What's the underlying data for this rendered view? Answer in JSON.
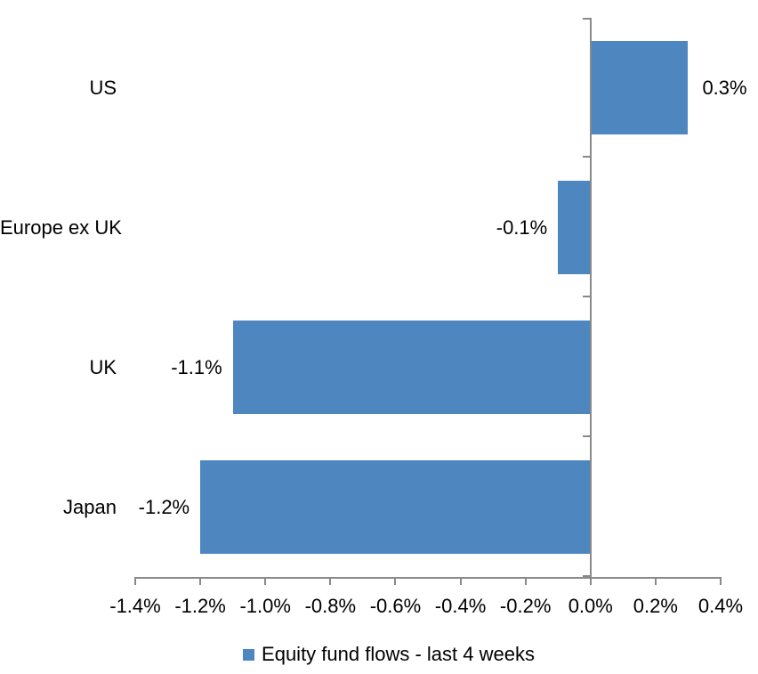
{
  "chart_data": {
    "type": "bar",
    "orientation": "horizontal",
    "title": "",
    "categories": [
      "US",
      "Europe ex UK",
      "UK",
      "Japan"
    ],
    "series": [
      {
        "name": "Equity fund flows - last 4 weeks",
        "values": [
          0.3,
          -0.1,
          -1.1,
          -1.2
        ],
        "data_labels": [
          "0.3%",
          "-0.1%",
          "-1.1%",
          "-1.2%"
        ],
        "color": "#4E86C0"
      }
    ],
    "xlim": [
      -1.4,
      0.4
    ],
    "x_tick_values": [
      -1.4,
      -1.2,
      -1.0,
      -0.8,
      -0.6,
      -0.4,
      -0.2,
      0.0,
      0.2,
      0.4
    ],
    "x_tick_labels": [
      "-1.4%",
      "-1.2%",
      "-1.0%",
      "-0.8%",
      "-0.6%",
      "-0.4%",
      "-0.2%",
      "0.0%",
      "0.2%",
      "0.4%"
    ],
    "grid": false,
    "legend_position": "bottom-center",
    "axis_color": "#898989",
    "text_color": "#000000",
    "background_color": "#FFFFFF"
  },
  "legend": {
    "label": "Equity fund flows - last 4 weeks"
  }
}
